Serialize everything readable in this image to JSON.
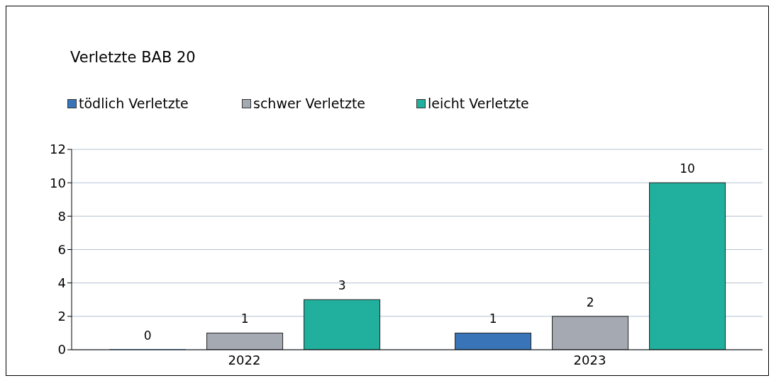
{
  "chart_data": {
    "type": "bar",
    "title": "Verletzte BAB 20",
    "categories": [
      "2022",
      "2023"
    ],
    "series": [
      {
        "name": "tödlich Verletzte",
        "color": "#3a74b8",
        "values": [
          0,
          1
        ]
      },
      {
        "name": "schwer Verletzte",
        "color": "#a5aab2",
        "values": [
          1,
          2
        ]
      },
      {
        "name": "leicht Verletzte",
        "color": "#20b09d",
        "values": [
          3,
          10
        ]
      }
    ],
    "ylim": [
      0,
      12
    ],
    "yticks": [
      0,
      2,
      4,
      6,
      8,
      10,
      12
    ],
    "grid": "y",
    "legend": "top left",
    "data_labels": true
  }
}
